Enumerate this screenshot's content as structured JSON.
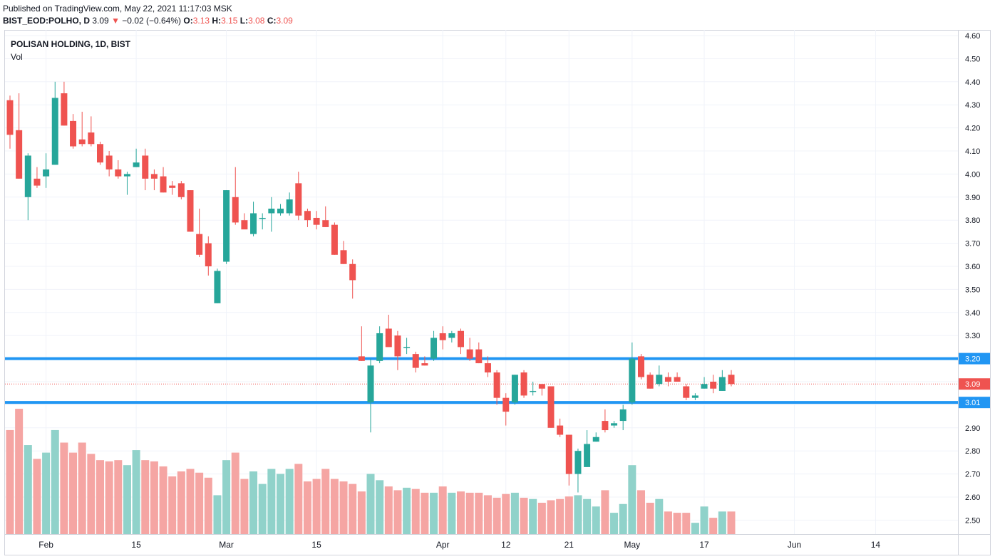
{
  "header": {
    "published": "Published on TradingView.com, May 22, 2021 11:17:03 MSK",
    "symbol": "BIST_EOD:POLHO, D",
    "last": "3.09",
    "down_arrow": "▼",
    "change": "−0.02 (−0.64%)",
    "o_label": "O:",
    "o_value": "3.13",
    "h_label": "H:",
    "h_value": "3.15",
    "l_label": "L:",
    "l_value": "3.08",
    "c_label": "C:",
    "c_value": "3.09"
  },
  "legend": {
    "title": "POLISAN HOLDING, 1D, BIST",
    "vol_label": "Vol"
  },
  "colors": {
    "up": "#26a69a",
    "down": "#ef5350",
    "vol_up": "#90d2ca",
    "vol_down": "#f5a5a3",
    "hline": "#2196f3",
    "grid": "#f0f3fa",
    "axis_text": "#131722"
  },
  "chart_data": {
    "type": "candlestick",
    "ylim": [
      2.45,
      4.62
    ],
    "y_ticks": [
      "4.60",
      "4.50",
      "4.40",
      "4.30",
      "4.20",
      "4.10",
      "4.00",
      "3.90",
      "3.80",
      "3.70",
      "3.60",
      "3.50",
      "3.40",
      "3.30",
      "3.20",
      "3.10",
      "3.00",
      "2.90",
      "2.80",
      "2.70",
      "2.60",
      "2.50"
    ],
    "x_ticks": [
      {
        "label": "Feb",
        "index": 4
      },
      {
        "label": "15",
        "index": 14
      },
      {
        "label": "Mar",
        "index": 24
      },
      {
        "label": "15",
        "index": 34
      },
      {
        "label": "Apr",
        "index": 48
      },
      {
        "label": "12",
        "index": 55
      },
      {
        "label": "21",
        "index": 62
      },
      {
        "label": "May",
        "index": 69
      },
      {
        "label": "17",
        "index": 77
      },
      {
        "label": "Jun",
        "index": 87
      },
      {
        "label": "14",
        "index": 96
      }
    ],
    "horizontal_lines": [
      {
        "price": 3.2,
        "label": "3.20"
      },
      {
        "price": 3.01,
        "label": "3.01"
      }
    ],
    "last_price": {
      "price": 3.09,
      "label": "3.09"
    },
    "max_volume": 100,
    "candles": [
      {
        "o": 4.32,
        "h": 4.34,
        "l": 4.11,
        "c": 4.17,
        "v": 83
      },
      {
        "o": 4.19,
        "h": 4.35,
        "l": 3.98,
        "c": 3.98,
        "v": 100
      },
      {
        "o": 3.9,
        "h": 4.09,
        "l": 3.8,
        "c": 4.08,
        "v": 71
      },
      {
        "o": 3.98,
        "h": 4.03,
        "l": 3.94,
        "c": 3.95,
        "v": 60
      },
      {
        "o": 3.99,
        "h": 4.09,
        "l": 3.94,
        "c": 4.02,
        "v": 65
      },
      {
        "o": 4.04,
        "h": 4.4,
        "l": 4.04,
        "c": 4.33,
        "v": 83
      },
      {
        "o": 4.35,
        "h": 4.4,
        "l": 4.21,
        "c": 4.21,
        "v": 73
      },
      {
        "o": 4.23,
        "h": 4.26,
        "l": 4.11,
        "c": 4.12,
        "v": 65
      },
      {
        "o": 4.15,
        "h": 4.27,
        "l": 4.12,
        "c": 4.13,
        "v": 73
      },
      {
        "o": 4.18,
        "h": 4.25,
        "l": 4.12,
        "c": 4.13,
        "v": 64
      },
      {
        "o": 4.13,
        "h": 4.14,
        "l": 4.04,
        "c": 4.05,
        "v": 59
      },
      {
        "o": 4.08,
        "h": 4.1,
        "l": 3.99,
        "c": 4.02,
        "v": 58
      },
      {
        "o": 4.02,
        "h": 4.06,
        "l": 3.98,
        "c": 3.99,
        "v": 59
      },
      {
        "o": 3.99,
        "h": 4.01,
        "l": 3.91,
        "c": 4.0,
        "v": 55
      },
      {
        "o": 4.03,
        "h": 4.11,
        "l": 4.03,
        "c": 4.05,
        "v": 67
      },
      {
        "o": 4.08,
        "h": 4.11,
        "l": 3.93,
        "c": 3.98,
        "v": 59
      },
      {
        "o": 4.0,
        "h": 4.02,
        "l": 3.93,
        "c": 3.98,
        "v": 58
      },
      {
        "o": 3.99,
        "h": 4.03,
        "l": 3.92,
        "c": 3.92,
        "v": 54
      },
      {
        "o": 3.95,
        "h": 3.97,
        "l": 3.91,
        "c": 3.94,
        "v": 46
      },
      {
        "o": 3.96,
        "h": 3.97,
        "l": 3.89,
        "c": 3.9,
        "v": 50
      },
      {
        "o": 3.93,
        "h": 3.93,
        "l": 3.75,
        "c": 3.75,
        "v": 52
      },
      {
        "o": 3.74,
        "h": 3.85,
        "l": 3.64,
        "c": 3.65,
        "v": 49
      },
      {
        "o": 3.7,
        "h": 3.73,
        "l": 3.56,
        "c": 3.6,
        "v": 45
      },
      {
        "o": 3.44,
        "h": 3.59,
        "l": 3.44,
        "c": 3.58,
        "v": 31
      },
      {
        "o": 3.62,
        "h": 3.93,
        "l": 3.61,
        "c": 3.93,
        "v": 59
      },
      {
        "o": 3.9,
        "h": 4.03,
        "l": 3.78,
        "c": 3.79,
        "v": 65
      },
      {
        "o": 3.8,
        "h": 3.83,
        "l": 3.77,
        "c": 3.76,
        "v": 44
      },
      {
        "o": 3.74,
        "h": 3.88,
        "l": 3.73,
        "c": 3.83,
        "v": 50
      },
      {
        "o": 3.81,
        "h": 3.83,
        "l": 3.76,
        "c": 3.81,
        "v": 40
      },
      {
        "o": 3.83,
        "h": 3.9,
        "l": 3.75,
        "c": 3.85,
        "v": 52
      },
      {
        "o": 3.83,
        "h": 3.87,
        "l": 3.82,
        "c": 3.85,
        "v": 48
      },
      {
        "o": 3.83,
        "h": 3.92,
        "l": 3.82,
        "c": 3.89,
        "v": 52
      },
      {
        "o": 3.96,
        "h": 4.01,
        "l": 3.8,
        "c": 3.82,
        "v": 56
      },
      {
        "o": 3.84,
        "h": 3.85,
        "l": 3.77,
        "c": 3.8,
        "v": 42
      },
      {
        "o": 3.81,
        "h": 3.84,
        "l": 3.76,
        "c": 3.78,
        "v": 44
      },
      {
        "o": 3.8,
        "h": 3.86,
        "l": 3.77,
        "c": 3.77,
        "v": 52
      },
      {
        "o": 3.78,
        "h": 3.79,
        "l": 3.65,
        "c": 3.65,
        "v": 44
      },
      {
        "o": 3.67,
        "h": 3.71,
        "l": 3.61,
        "c": 3.61,
        "v": 42
      },
      {
        "o": 3.61,
        "h": 3.63,
        "l": 3.46,
        "c": 3.54,
        "v": 40
      },
      {
        "o": 3.21,
        "h": 3.34,
        "l": 3.19,
        "c": 3.19,
        "v": 34
      },
      {
        "o": 3.01,
        "h": 3.2,
        "l": 2.88,
        "c": 3.17,
        "v": 48
      },
      {
        "o": 3.19,
        "h": 3.34,
        "l": 3.18,
        "c": 3.31,
        "v": 43
      },
      {
        "o": 3.33,
        "h": 3.39,
        "l": 3.26,
        "c": 3.25,
        "v": 38
      },
      {
        "o": 3.3,
        "h": 3.32,
        "l": 3.15,
        "c": 3.21,
        "v": 35
      },
      {
        "o": 3.25,
        "h": 3.29,
        "l": 3.22,
        "c": 3.25,
        "v": 37
      },
      {
        "o": 3.22,
        "h": 3.23,
        "l": 3.14,
        "c": 3.16,
        "v": 36
      },
      {
        "o": 3.18,
        "h": 3.21,
        "l": 3.17,
        "c": 3.17,
        "v": 33
      },
      {
        "o": 3.2,
        "h": 3.32,
        "l": 3.19,
        "c": 3.29,
        "v": 33
      },
      {
        "o": 3.31,
        "h": 3.34,
        "l": 3.24,
        "c": 3.28,
        "v": 38
      },
      {
        "o": 3.29,
        "h": 3.32,
        "l": 3.27,
        "c": 3.31,
        "v": 33
      },
      {
        "o": 3.32,
        "h": 3.33,
        "l": 3.22,
        "c": 3.25,
        "v": 34
      },
      {
        "o": 3.24,
        "h": 3.29,
        "l": 3.19,
        "c": 3.2,
        "v": 33
      },
      {
        "o": 3.24,
        "h": 3.27,
        "l": 3.18,
        "c": 3.18,
        "v": 33
      },
      {
        "o": 3.18,
        "h": 3.21,
        "l": 3.12,
        "c": 3.14,
        "v": 31
      },
      {
        "o": 3.14,
        "h": 3.15,
        "l": 3.0,
        "c": 3.03,
        "v": 29
      },
      {
        "o": 3.03,
        "h": 3.05,
        "l": 2.91,
        "c": 2.97,
        "v": 32
      },
      {
        "o": 3.01,
        "h": 3.13,
        "l": 3.0,
        "c": 3.13,
        "v": 33
      },
      {
        "o": 3.14,
        "h": 3.15,
        "l": 3.03,
        "c": 3.04,
        "v": 29
      },
      {
        "o": 3.06,
        "h": 3.1,
        "l": 3.04,
        "c": 3.06,
        "v": 28
      },
      {
        "o": 3.09,
        "h": 3.08,
        "l": 3.04,
        "c": 3.07,
        "v": 25
      },
      {
        "o": 3.08,
        "h": 3.08,
        "l": 2.9,
        "c": 2.9,
        "v": 27
      },
      {
        "o": 2.91,
        "h": 2.94,
        "l": 2.86,
        "c": 2.87,
        "v": 28
      },
      {
        "o": 2.87,
        "h": 2.87,
        "l": 2.65,
        "c": 2.7,
        "v": 30
      },
      {
        "o": 2.7,
        "h": 2.81,
        "l": 2.62,
        "c": 2.8,
        "v": 31
      },
      {
        "o": 2.73,
        "h": 2.89,
        "l": 2.73,
        "c": 2.83,
        "v": 28
      },
      {
        "o": 2.84,
        "h": 2.88,
        "l": 2.84,
        "c": 2.86,
        "v": 22
      },
      {
        "o": 2.93,
        "h": 2.98,
        "l": 2.88,
        "c": 2.89,
        "v": 35
      },
      {
        "o": 2.91,
        "h": 2.93,
        "l": 2.9,
        "c": 2.92,
        "v": 17
      },
      {
        "o": 2.93,
        "h": 3.0,
        "l": 2.89,
        "c": 2.98,
        "v": 24
      },
      {
        "o": 3.01,
        "h": 3.27,
        "l": 3.0,
        "c": 3.2,
        "v": 55
      },
      {
        "o": 3.21,
        "h": 3.22,
        "l": 3.11,
        "c": 3.12,
        "v": 35
      },
      {
        "o": 3.13,
        "h": 3.14,
        "l": 3.07,
        "c": 3.07,
        "v": 25
      },
      {
        "o": 3.09,
        "h": 3.17,
        "l": 3.08,
        "c": 3.13,
        "v": 28
      },
      {
        "o": 3.12,
        "h": 3.14,
        "l": 3.08,
        "c": 3.1,
        "v": 18
      },
      {
        "o": 3.12,
        "h": 3.14,
        "l": 3.1,
        "c": 3.1,
        "v": 17
      },
      {
        "o": 3.08,
        "h": 3.09,
        "l": 3.02,
        "c": 3.03,
        "v": 17
      },
      {
        "o": 3.03,
        "h": 3.05,
        "l": 3.02,
        "c": 3.04,
        "v": 9
      },
      {
        "o": 3.07,
        "h": 3.12,
        "l": 3.07,
        "c": 3.09,
        "v": 22
      },
      {
        "o": 3.1,
        "h": 3.13,
        "l": 3.05,
        "c": 3.07,
        "v": 13
      },
      {
        "o": 3.06,
        "h": 3.15,
        "l": 3.06,
        "c": 3.12,
        "v": 18
      },
      {
        "o": 3.13,
        "h": 3.15,
        "l": 3.08,
        "c": 3.09,
        "v": 18
      }
    ]
  }
}
